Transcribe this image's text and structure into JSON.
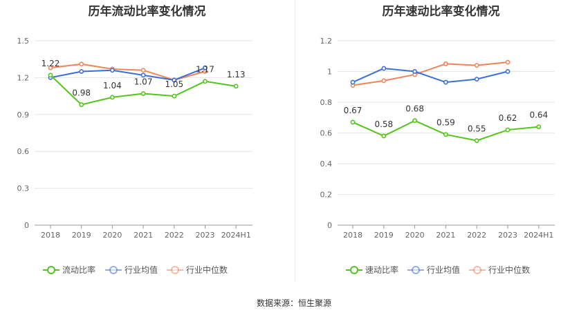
{
  "chart_data": [
    {
      "type": "line",
      "title": "历年流动比率变化情况",
      "categories": [
        "2018",
        "2019",
        "2020",
        "2021",
        "2022",
        "2023",
        "2024H1"
      ],
      "y_ticks": [
        "0",
        "0.3",
        "0.6",
        "0.9",
        "1.2",
        "1.5"
      ],
      "ylim": [
        0,
        1.5
      ],
      "grid": true,
      "legend_position": "bottom",
      "series": [
        {
          "name": "流动比率",
          "color": "#52c41a",
          "values": [
            1.22,
            0.98,
            1.04,
            1.07,
            1.05,
            1.17,
            1.13
          ],
          "labels": [
            "1.22",
            "0.98",
            "1.04",
            "1.07",
            "1.05",
            "1.17",
            "1.13"
          ]
        },
        {
          "name": "行业均值",
          "color": "#3b6fd6",
          "values": [
            1.2,
            1.25,
            1.26,
            1.22,
            1.18,
            1.28,
            null
          ]
        },
        {
          "name": "行业中位数",
          "color": "#f0835a",
          "values": [
            1.28,
            1.31,
            1.27,
            1.26,
            1.18,
            1.25,
            null
          ]
        }
      ]
    },
    {
      "type": "line",
      "title": "历年速动比率变化情况",
      "categories": [
        "2018",
        "2019",
        "2020",
        "2021",
        "2022",
        "2023",
        "2024H1"
      ],
      "y_ticks": [
        "0",
        "0.2",
        "0.4",
        "0.6",
        "0.8",
        "1",
        "1.2"
      ],
      "ylim": [
        0,
        1.2
      ],
      "grid": true,
      "legend_position": "bottom",
      "series": [
        {
          "name": "速动比率",
          "color": "#52c41a",
          "values": [
            0.67,
            0.58,
            0.68,
            0.59,
            0.55,
            0.62,
            0.64
          ],
          "labels": [
            "0.67",
            "0.58",
            "0.68",
            "0.59",
            "0.55",
            "0.62",
            "0.64"
          ]
        },
        {
          "name": "行业均值",
          "color": "#3b6fd6",
          "values": [
            0.93,
            1.02,
            1.0,
            0.93,
            0.95,
            1.0,
            null
          ]
        },
        {
          "name": "行业中位数",
          "color": "#f0835a",
          "values": [
            0.91,
            0.94,
            0.98,
            1.05,
            1.04,
            1.06,
            null
          ]
        }
      ]
    }
  ],
  "footer": {
    "source": "数据来源：恒生聚源"
  }
}
